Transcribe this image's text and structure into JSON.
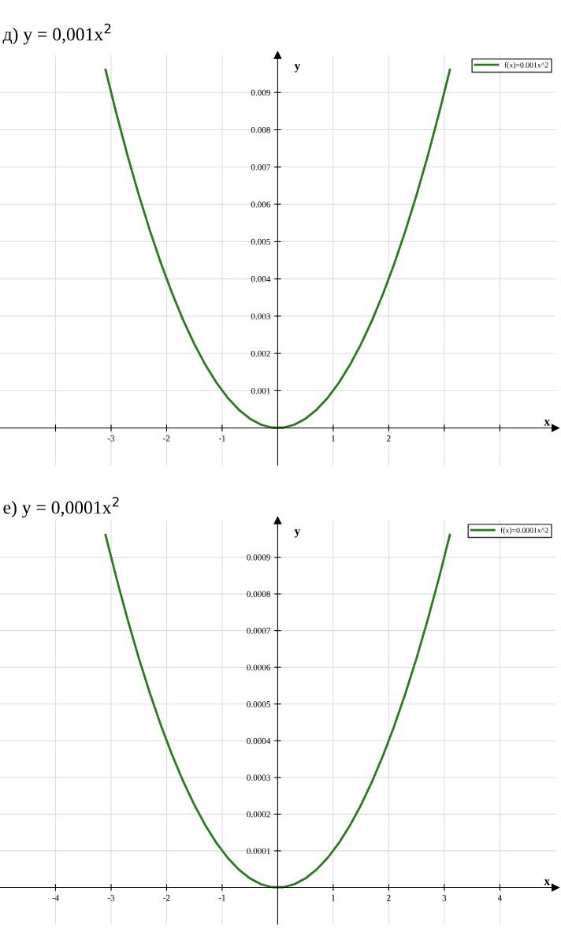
{
  "chart_data": [
    {
      "type": "line",
      "title": "д) y = 0,001x$^{2}$",
      "xlabel": "x",
      "ylabel": "y",
      "legend": "top right",
      "grid": true,
      "marker": "none",
      "line_style": "solid",
      "x": [
        -3.1,
        -2.9,
        -2.7,
        -2.5,
        -2.3,
        -2.1,
        -1.9,
        -1.7,
        -1.5,
        -1.3,
        -1.1,
        -0.9,
        -0.7,
        -0.5,
        -0.3,
        -0.1,
        0.1,
        0.3,
        0.5,
        0.7,
        0.9,
        1.1,
        1.3,
        1.5,
        1.7,
        1.9,
        2.1,
        2.3,
        2.5,
        2.7,
        2.9,
        3.1
      ],
      "series": [
        {
          "name": "f(x)=0.001x^2",
          "color": "#2a7a1e",
          "values": [
            0.00961,
            0.00841,
            0.00729,
            0.00625,
            0.00529,
            0.00441,
            0.00361,
            0.00289,
            0.00225,
            0.00169,
            0.00121,
            0.00081,
            0.00049,
            0.00025,
            9e-05,
            1e-05,
            1e-05,
            9e-05,
            0.00025,
            0.00049,
            0.00081,
            0.00121,
            0.00169,
            0.00225,
            0.00289,
            0.00361,
            0.00441,
            0.00529,
            0.00625,
            0.00729,
            0.00841,
            0.00961
          ]
        }
      ],
      "xlim": [
        -5,
        5
      ],
      "xticks": [
        {
          "value": -4,
          "label": null
        },
        -3,
        -2,
        -1,
        1,
        2,
        {
          "value": 3,
          "label": null
        },
        {
          "value": 4,
          "label": null
        }
      ],
      "ylim": [
        -0.001,
        0.01
      ],
      "yticks": [
        0.001,
        0.002,
        0.003,
        0.004,
        0.005,
        0.006,
        0.007,
        0.008,
        0.009
      ]
    },
    {
      "type": "line",
      "title": "е) y = 0,0001x$^{2}$",
      "xlabel": "x",
      "ylabel": "y",
      "legend": "top right",
      "grid": true,
      "marker": "none",
      "line_style": "solid",
      "x": [
        -3.1,
        -2.9,
        -2.7,
        -2.5,
        -2.3,
        -2.1,
        -1.9,
        -1.7,
        -1.5,
        -1.3,
        -1.1,
        -0.9,
        -0.7,
        -0.5,
        -0.3,
        -0.1,
        0.1,
        0.3,
        0.5,
        0.7,
        0.9,
        1.1,
        1.3,
        1.5,
        1.7,
        1.9,
        2.1,
        2.3,
        2.5,
        2.7,
        2.9,
        3.1
      ],
      "series": [
        {
          "name": "f(x)=0.0001x^2",
          "color": "#2a7a1e",
          "values": [
            0.000961,
            0.000841,
            0.000729,
            0.000625,
            0.000529,
            0.000441,
            0.000361,
            0.000289,
            0.000225,
            0.000169,
            0.000121,
            8.1e-05,
            4.9e-05,
            2.5e-05,
            9e-06,
            1e-06,
            1e-06,
            9e-06,
            2.5e-05,
            4.9e-05,
            8.1e-05,
            0.000121,
            0.000169,
            0.000225,
            0.000289,
            0.000361,
            0.000441,
            0.000529,
            0.000625,
            0.000729,
            0.000841,
            0.000961
          ]
        }
      ],
      "xlim": [
        -5,
        5
      ],
      "xticks": [
        -4,
        -3,
        -2,
        -1,
        1,
        2,
        3,
        4
      ],
      "ylim": [
        -0.0001,
        0.001
      ],
      "yticks": [
        0.0001,
        0.0002,
        0.0003,
        0.0004,
        0.0005,
        0.0006,
        0.0007,
        0.0008,
        0.0009
      ]
    }
  ]
}
